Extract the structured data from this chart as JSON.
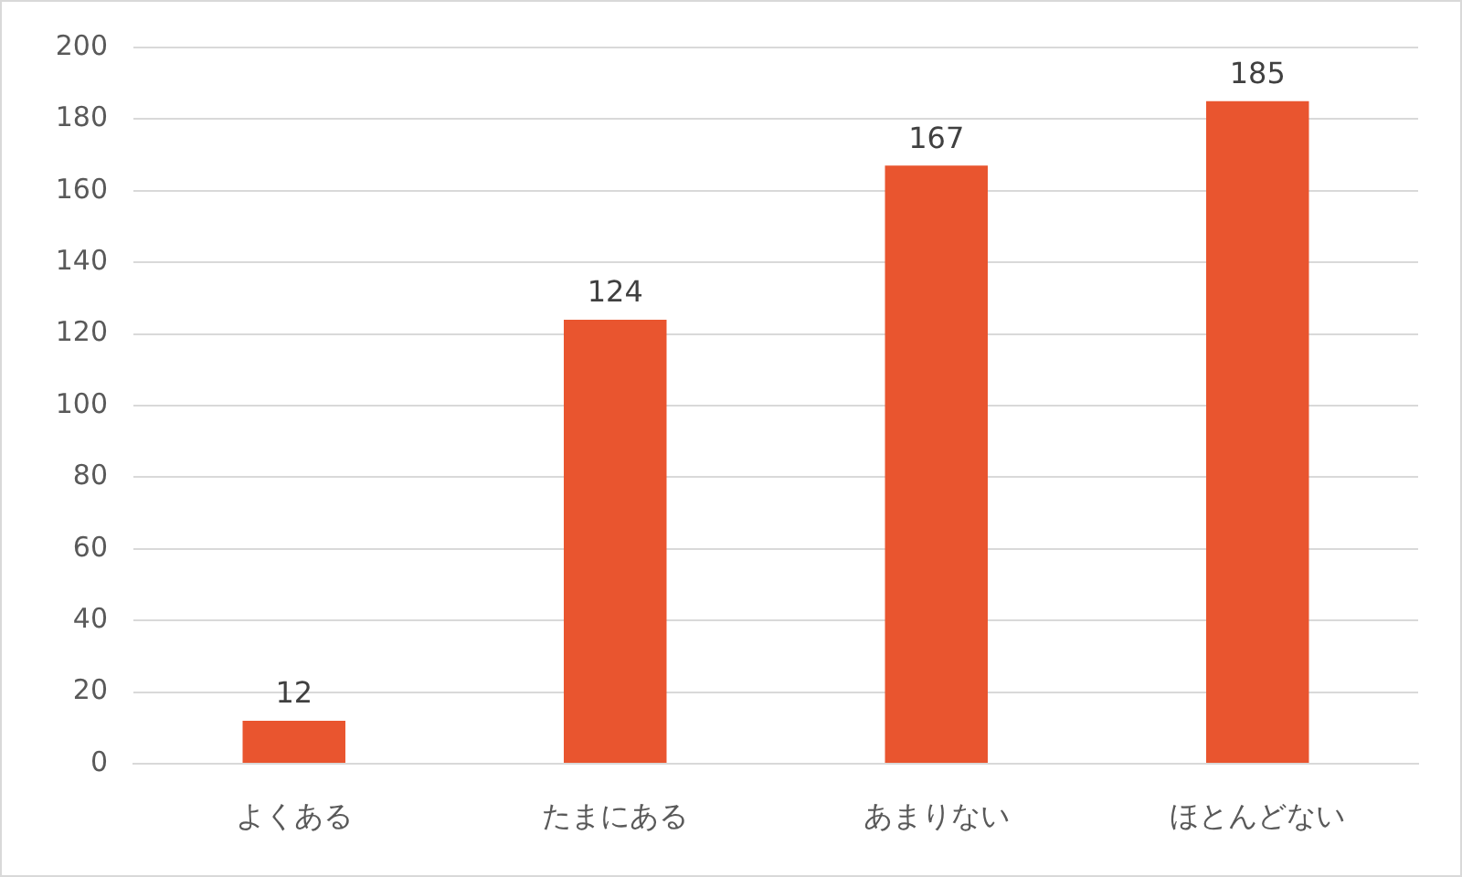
{
  "chart_data": {
    "type": "bar",
    "categories": [
      "よくある",
      "たまにある",
      "あまりない",
      "ほとんどない"
    ],
    "values": [
      12,
      124,
      167,
      185
    ],
    "color": "#e9552f",
    "ylim": [
      0,
      200
    ],
    "yticks": [
      0,
      20,
      40,
      60,
      80,
      100,
      120,
      140,
      160,
      180,
      200
    ],
    "grid": "y",
    "data_labels": true
  }
}
